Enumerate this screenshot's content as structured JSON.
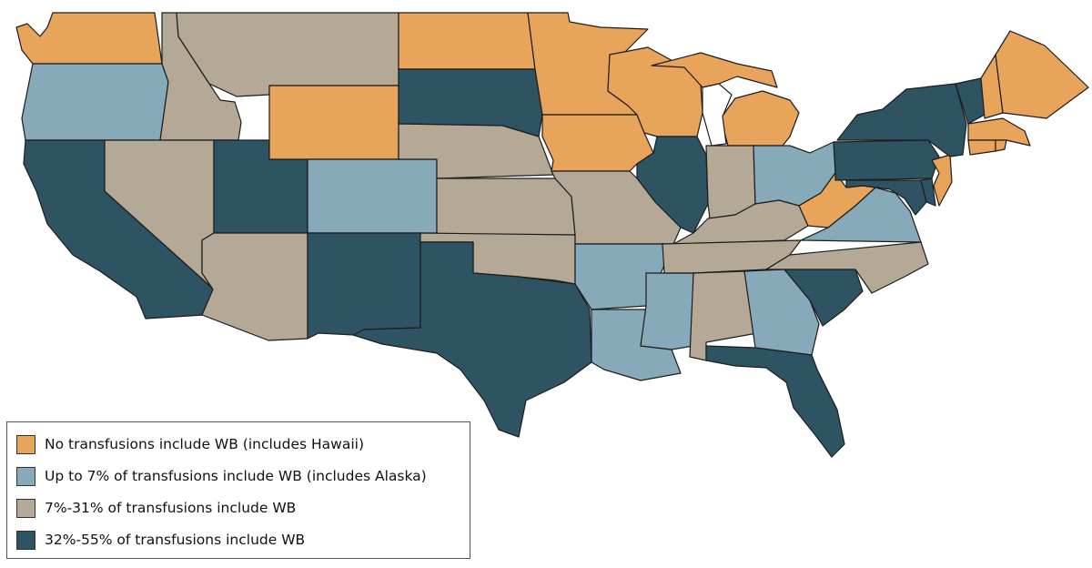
{
  "categories": {
    "none": {
      "label": "No transfusions include WB (includes Hawaii)",
      "color": "#E8A45A"
    },
    "low": {
      "label": "Up to 7% of transfusions include WB (includes Alaska)",
      "color": "#86AABA"
    },
    "mid": {
      "label": "7%-31% of transfusions include WB",
      "color": "#B4A996"
    },
    "high": {
      "label": "32%-55% of transfusions include WB",
      "color": "#2E5463"
    }
  },
  "legend_order": [
    "none",
    "low",
    "mid",
    "high"
  ],
  "states": {
    "WA": "none",
    "OR": "low",
    "CA": "high",
    "ID": "mid",
    "NV": "mid",
    "MT": "mid",
    "WY": "none",
    "UT": "high",
    "AZ": "mid",
    "CO": "low",
    "NM": "high",
    "ND": "none",
    "SD": "high",
    "NE": "mid",
    "KS": "mid",
    "OK": "mid",
    "TX": "high",
    "MN": "none",
    "IA": "none",
    "MO": "mid",
    "AR": "low",
    "LA": "low",
    "WI": "none",
    "IL": "high",
    "MI": "none",
    "IN": "mid",
    "OH": "low",
    "KY": "mid",
    "TN": "mid",
    "MS": "low",
    "AL": "mid",
    "GA": "low",
    "FL": "high",
    "SC": "high",
    "NC": "mid",
    "VA": "low",
    "WV": "none",
    "PA": "high",
    "NY": "high",
    "VT": "high",
    "NH": "none",
    "ME": "none",
    "MA": "none",
    "CT": "none",
    "RI": "none",
    "NJ": "none",
    "DE": "high",
    "MD": "high"
  }
}
